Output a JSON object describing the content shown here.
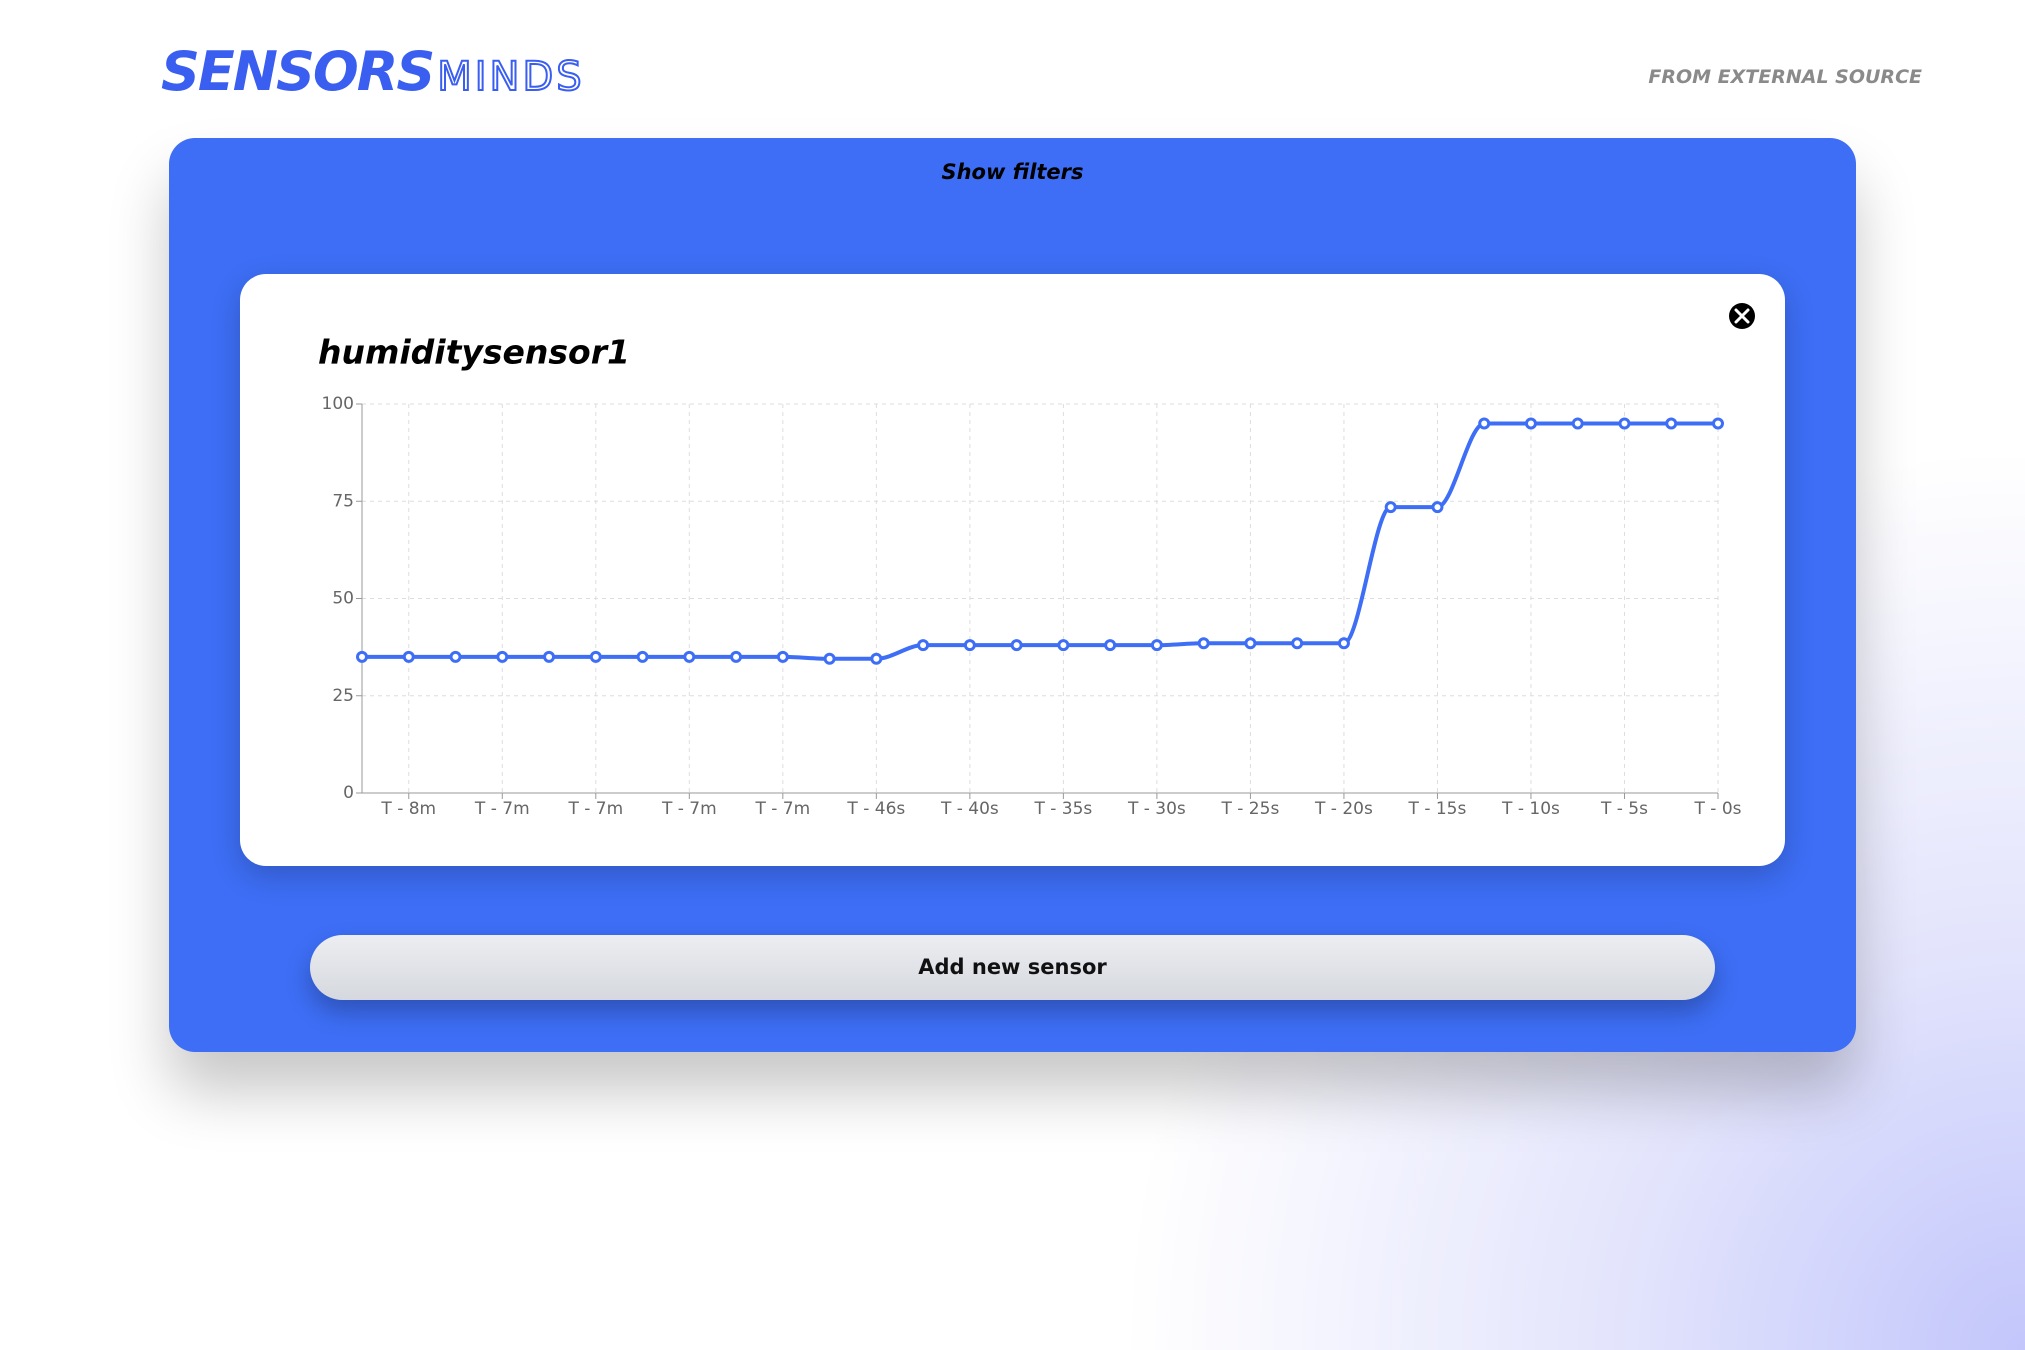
{
  "header": {
    "logo_bold": "SENSORS",
    "logo_light": "MINDS",
    "source": "FROM EXTERNAL SOURCE"
  },
  "panel": {
    "filters": "Show filters",
    "button": "Add new sensor"
  },
  "chart_data": {
    "type": "line",
    "title": "humiditysensor1",
    "categories": [
      null,
      "T - 8m",
      null,
      "T - 7m",
      null,
      "T - 7m",
      null,
      "T - 7m",
      null,
      "T - 7m",
      null,
      "T - 46s",
      null,
      "T - 40s",
      null,
      "T - 35s",
      null,
      "T - 30s",
      null,
      "T - 25s",
      null,
      "T - 20s",
      null,
      "T - 15s",
      null,
      "T - 10s",
      null,
      "T - 5s",
      null,
      "T - 0s"
    ],
    "series": [
      {
        "name": "humiditysensor1",
        "color": "#3d6ef5",
        "values": [
          35,
          35,
          35,
          35,
          35,
          35,
          35,
          35,
          35,
          35,
          34.5,
          34.5,
          38,
          38,
          38,
          38,
          38,
          38,
          38.5,
          38.5,
          38.5,
          38.5,
          73.5,
          73.5,
          95,
          95,
          95,
          95,
          95,
          95
        ]
      }
    ],
    "ylim": [
      0,
      100
    ],
    "yticks": [
      0,
      25,
      50,
      75,
      100
    ],
    "grid": true
  }
}
